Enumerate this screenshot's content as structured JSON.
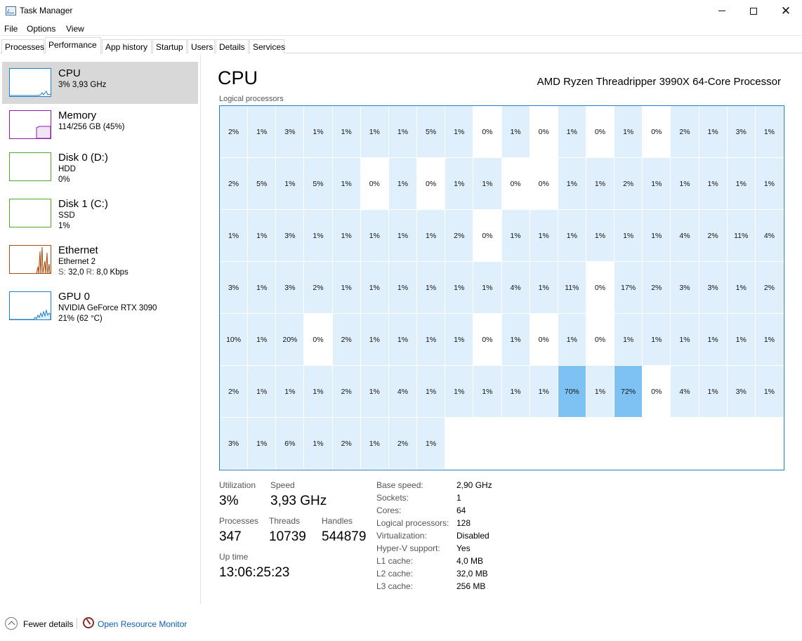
{
  "window": {
    "title": "Task Manager"
  },
  "menu": [
    "File",
    "Options",
    "View"
  ],
  "tabs": [
    "Processes",
    "Performance",
    "App history",
    "Startup",
    "Users",
    "Details",
    "Services"
  ],
  "active_tab": "Performance",
  "sidebar": {
    "items": [
      {
        "title": "CPU",
        "line1": "3% 3,93 GHz",
        "line2": "",
        "color": "#1f7dc9"
      },
      {
        "title": "Memory",
        "line1": "114/256 GB (45%)",
        "line2": "",
        "color": "#8b1ca9"
      },
      {
        "title": "Disk 0 (D:)",
        "line1": "HDD",
        "line2": "0%",
        "color": "#4ea72a"
      },
      {
        "title": "Disk 1 (C:)",
        "line1": "SSD",
        "line2": "1%",
        "color": "#4ea72a"
      },
      {
        "title": "Ethernet",
        "line1": "Ethernet 2",
        "line2_s_label": "S:",
        "line2_s": "32,0",
        "line2_r_label": "R:",
        "line2_r": "8,0 Kbps",
        "color": "#a74d0f"
      },
      {
        "title": "GPU 0",
        "line1": "NVIDIA GeForce RTX 3090",
        "line2": "21%  (62 °C)",
        "color": "#1f7dc9"
      }
    ]
  },
  "main": {
    "title": "CPU",
    "processor": "AMD Ryzen Threadripper 3990X 64-Core Processor",
    "grid_label": "Logical processors",
    "logical_processors": [
      "2%",
      "1%",
      "3%",
      "1%",
      "1%",
      "1%",
      "1%",
      "5%",
      "1%",
      "0%",
      "1%",
      "0%",
      "1%",
      "0%",
      "1%",
      "0%",
      "2%",
      "1%",
      "3%",
      "1%",
      "2%",
      "5%",
      "1%",
      "5%",
      "1%",
      "0%",
      "1%",
      "0%",
      "1%",
      "1%",
      "0%",
      "0%",
      "1%",
      "1%",
      "2%",
      "1%",
      "1%",
      "1%",
      "1%",
      "1%",
      "1%",
      "1%",
      "3%",
      "1%",
      "1%",
      "1%",
      "1%",
      "1%",
      "2%",
      "0%",
      "1%",
      "1%",
      "1%",
      "1%",
      "1%",
      "1%",
      "4%",
      "2%",
      "11%",
      "4%",
      "3%",
      "1%",
      "3%",
      "2%",
      "1%",
      "1%",
      "1%",
      "1%",
      "1%",
      "1%",
      "4%",
      "1%",
      "11%",
      "0%",
      "17%",
      "2%",
      "3%",
      "3%",
      "1%",
      "2%",
      "10%",
      "1%",
      "20%",
      "0%",
      "2%",
      "1%",
      "1%",
      "1%",
      "1%",
      "0%",
      "1%",
      "0%",
      "1%",
      "0%",
      "1%",
      "1%",
      "1%",
      "1%",
      "1%",
      "1%",
      "2%",
      "1%",
      "1%",
      "1%",
      "2%",
      "1%",
      "4%",
      "1%",
      "1%",
      "1%",
      "1%",
      "1%",
      "70%",
      "1%",
      "72%",
      "0%",
      "4%",
      "1%",
      "3%",
      "1%",
      "3%",
      "1%",
      "6%",
      "1%",
      "2%",
      "1%",
      "2%",
      "1%"
    ],
    "stats": {
      "utilization_label": "Utilization",
      "utilization": "3%",
      "speed_label": "Speed",
      "speed": "3,93 GHz",
      "processes_label": "Processes",
      "processes": "347",
      "threads_label": "Threads",
      "threads": "10739",
      "handles_label": "Handles",
      "handles": "544879",
      "uptime_label": "Up time",
      "uptime": "13:06:25:23"
    },
    "details": [
      {
        "label": "Base speed:",
        "value": "2,90 GHz"
      },
      {
        "label": "Sockets:",
        "value": "1"
      },
      {
        "label": "Cores:",
        "value": "64"
      },
      {
        "label": "Logical processors:",
        "value": "128"
      },
      {
        "label": "Virtualization:",
        "value": "Disabled"
      },
      {
        "label": "Hyper-V support:",
        "value": "Yes"
      },
      {
        "label": "L1 cache:",
        "value": "4,0 MB"
      },
      {
        "label": "L2 cache:",
        "value": "32,0 MB"
      },
      {
        "label": "L3 cache:",
        "value": "256 MB"
      }
    ]
  },
  "footer": {
    "fewer_details": "Fewer details",
    "resource_monitor": "Open Resource Monitor"
  }
}
